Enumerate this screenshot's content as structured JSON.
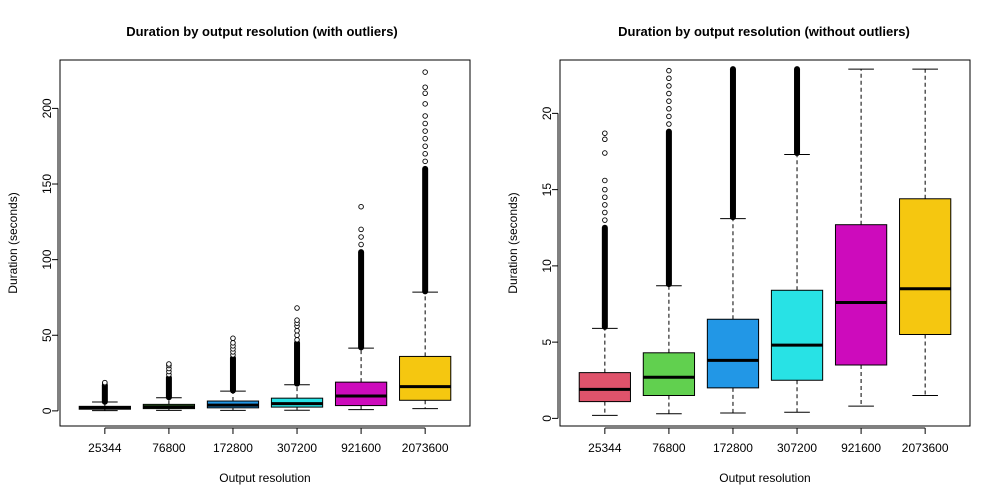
{
  "chart_data": [
    {
      "type": "box",
      "title": "Duration by output resolution (with outliers)",
      "xlabel": "Output resolution",
      "ylabel": "Duration (seconds)",
      "ylim": [
        -10,
        232
      ],
      "yticks": [
        0,
        50,
        100,
        150,
        200
      ],
      "grid": false,
      "categories": [
        "25344",
        "76800",
        "172800",
        "307200",
        "921600",
        "2073600"
      ],
      "colors": [
        "#DF536B",
        "#61D04F",
        "#2297E6",
        "#28E2E5",
        "#CD0BBC",
        "#F5C710"
      ],
      "boxes": [
        {
          "whisker_low": 0.2,
          "q1": 1.1,
          "median": 1.9,
          "q3": 3.0,
          "whisker_high": 5.9,
          "outlier_band": [
            6,
            17
          ],
          "outliers_sparse": [
            18.2,
            18.7
          ]
        },
        {
          "whisker_low": 0.3,
          "q1": 1.5,
          "median": 2.7,
          "q3": 4.3,
          "whisker_high": 8.7,
          "outlier_band": [
            9,
            22
          ],
          "outliers_sparse": [
            24,
            26,
            28,
            30,
            31
          ]
        },
        {
          "whisker_low": 0.35,
          "q1": 2.0,
          "median": 3.8,
          "q3": 6.5,
          "whisker_high": 13.1,
          "outlier_band": [
            13.5,
            35
          ],
          "outliers_sparse": [
            37,
            39,
            41,
            43,
            45,
            48
          ]
        },
        {
          "whisker_low": 0.4,
          "q1": 2.5,
          "median": 4.8,
          "q3": 8.4,
          "whisker_high": 17.3,
          "outlier_band": [
            18,
            45
          ],
          "outliers_sparse": [
            47,
            50,
            53,
            56,
            58,
            60,
            68
          ]
        },
        {
          "whisker_low": 0.8,
          "q1": 3.5,
          "median": 9.8,
          "q3": 19.0,
          "whisker_high": 41.5,
          "outlier_band": [
            42,
            105
          ],
          "outliers_sparse": [
            110,
            115,
            120,
            135
          ]
        },
        {
          "whisker_low": 1.5,
          "q1": 7.0,
          "median": 16.0,
          "q3": 36.0,
          "whisker_high": 78.5,
          "outlier_band": [
            79,
            160
          ],
          "outliers_sparse": [
            165,
            170,
            175,
            180,
            185,
            190,
            195,
            203,
            210,
            214,
            224
          ]
        }
      ]
    },
    {
      "type": "box",
      "title": "Duration by output resolution (without outliers)",
      "xlabel": "Output resolution",
      "ylabel": "Duration (seconds)",
      "ylim": [
        -0.5,
        23.5
      ],
      "yticks": [
        0,
        5,
        10,
        15,
        20
      ],
      "grid": false,
      "categories": [
        "25344",
        "76800",
        "172800",
        "307200",
        "921600",
        "2073600"
      ],
      "colors": [
        "#DF536B",
        "#61D04F",
        "#2297E6",
        "#28E2E5",
        "#CD0BBC",
        "#F5C710"
      ],
      "boxes": [
        {
          "whisker_low": 0.2,
          "q1": 1.1,
          "median": 1.9,
          "q3": 3.0,
          "whisker_high": 5.9,
          "outlier_band": [
            6.0,
            12.5
          ],
          "outliers_sparse": [
            13.0,
            13.5,
            14.0,
            14.5,
            15.0,
            15.6,
            17.4,
            18.3,
            18.7
          ]
        },
        {
          "whisker_low": 0.3,
          "q1": 1.5,
          "median": 2.7,
          "q3": 4.3,
          "whisker_high": 8.7,
          "outlier_band": [
            8.8,
            18.8
          ],
          "outliers_sparse": [
            19.3,
            19.8,
            20.3,
            20.8,
            21.3,
            21.8,
            22.3,
            22.8
          ]
        },
        {
          "whisker_low": 0.35,
          "q1": 2.0,
          "median": 3.8,
          "q3": 6.5,
          "whisker_high": 13.1,
          "outlier_band": [
            13.2,
            22.9
          ],
          "outliers_sparse": []
        },
        {
          "whisker_low": 0.4,
          "q1": 2.5,
          "median": 4.8,
          "q3": 8.4,
          "whisker_high": 17.3,
          "outlier_band": [
            17.4,
            22.9
          ],
          "outliers_sparse": []
        },
        {
          "whisker_low": 0.8,
          "q1": 3.5,
          "median": 7.6,
          "q3": 12.7,
          "whisker_high": 22.9,
          "outlier_band": null,
          "outliers_sparse": []
        },
        {
          "whisker_low": 1.5,
          "q1": 5.5,
          "median": 8.5,
          "q3": 14.4,
          "whisker_high": 22.9,
          "outlier_band": null,
          "outliers_sparse": []
        }
      ]
    }
  ]
}
